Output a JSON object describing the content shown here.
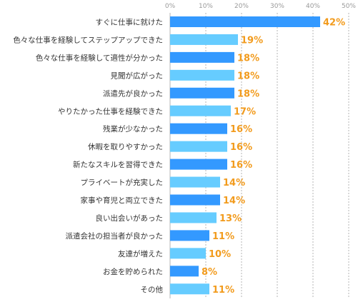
{
  "chart_data": {
    "type": "bar",
    "orientation": "horizontal",
    "categories": [
      "すぐに仕事に就けた",
      "色々な仕事を経験してステップアップできた",
      "色々な仕事を経験して適性が分かった",
      "見聞が広がった",
      "派遣先が良かった",
      "やりたかった仕事を経験できた",
      "残業が少なかった",
      "休暇を取りやすかった",
      "新たなスキルを習得できた",
      "プライベートが充実した",
      "家事や育児と両立できた",
      "良い出会いがあった",
      "派遣会社の担当者が良かった",
      "友達が増えた",
      "お金を貯められた",
      "その他"
    ],
    "values": [
      42,
      19,
      18,
      18,
      18,
      17,
      16,
      16,
      16,
      14,
      14,
      13,
      11,
      10,
      8,
      11
    ],
    "value_labels": [
      "42%",
      "19%",
      "18%",
      "18%",
      "18%",
      "17%",
      "16%",
      "16%",
      "16%",
      "14%",
      "14%",
      "13%",
      "11%",
      "10%",
      "8%",
      "11%"
    ],
    "xticks": [
      "0%",
      "10%",
      "20%",
      "30%",
      "40%",
      "50%"
    ],
    "xlim": [
      0,
      50
    ],
    "grid": true,
    "colors": {
      "bar_dark": "#3399ff",
      "bar_light": "#66ccff",
      "value_label": "#f29b1d",
      "grid": "#b5b5b5",
      "tick": "#9a9a9a",
      "category": "#333333"
    }
  }
}
